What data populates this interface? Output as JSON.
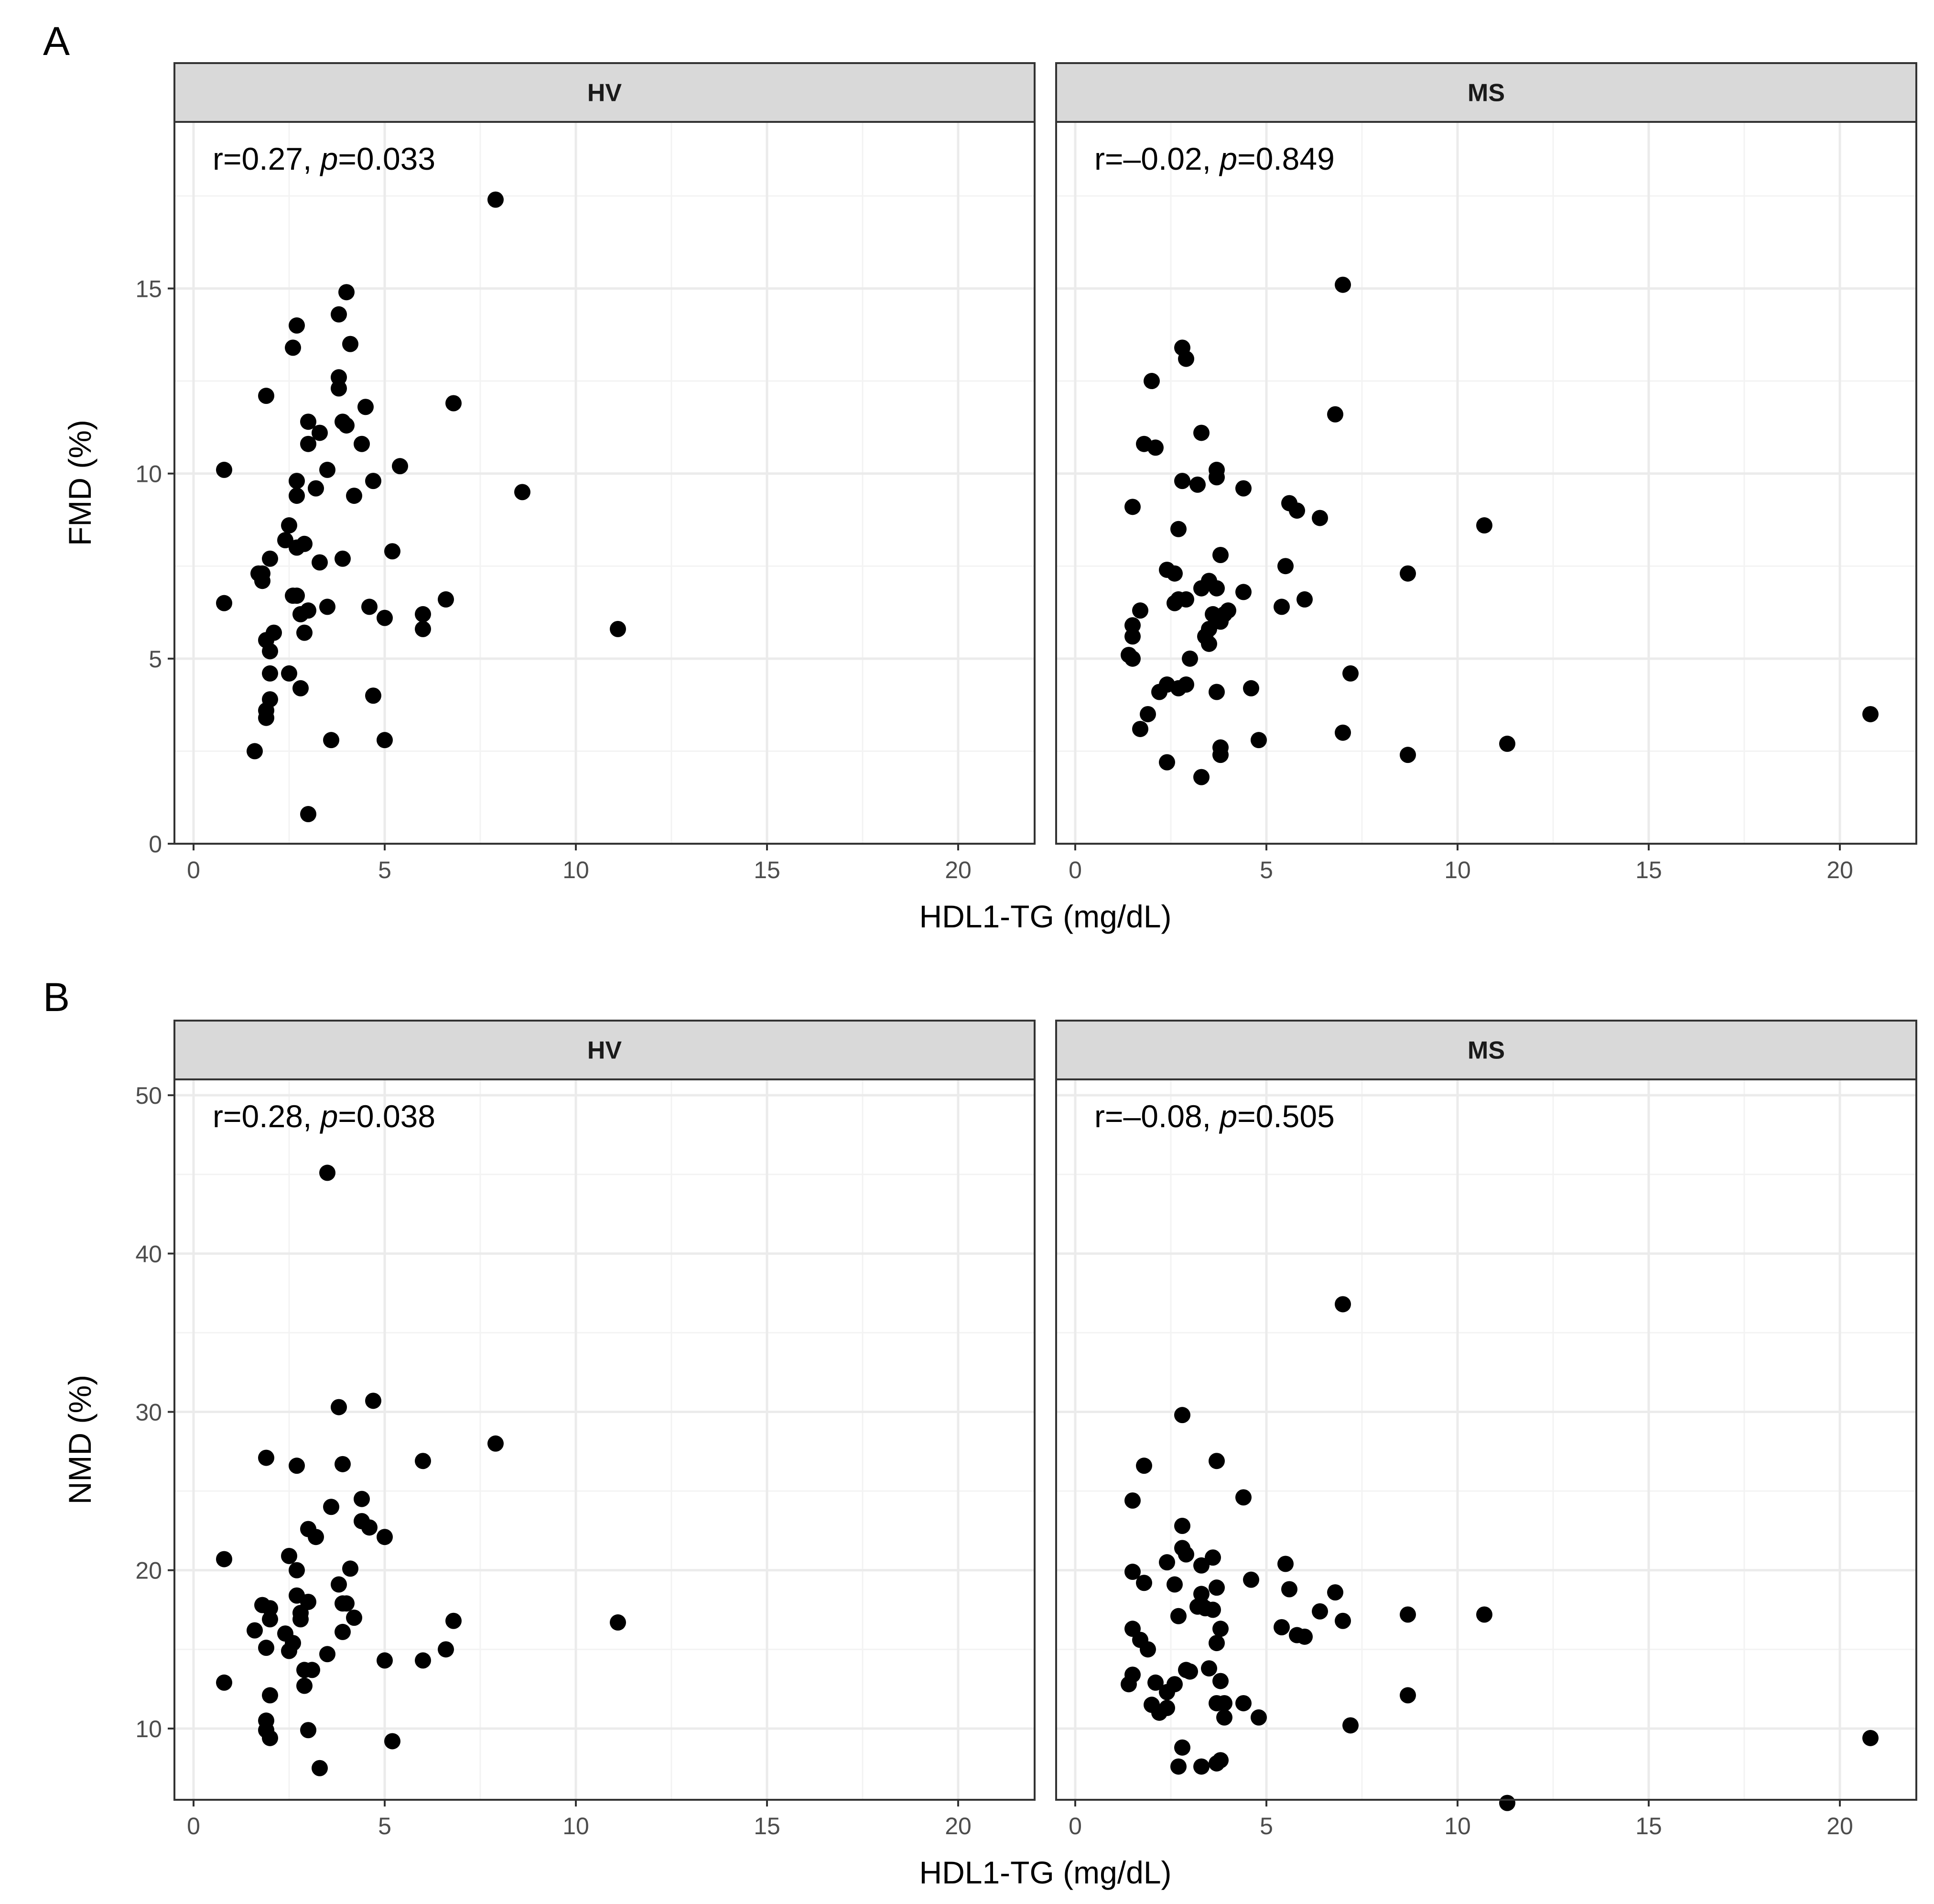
{
  "chart_data": [
    {
      "type": "scatter",
      "panel_label": "A",
      "ylabel": "FMD (%)",
      "xlabel": "HDL1-TG (mg/dL)",
      "xlim": [
        -0.5,
        22
      ],
      "ylim": [
        0,
        19.5
      ],
      "xticks": [
        0,
        5,
        10,
        15,
        20
      ],
      "yticks": [
        0,
        5,
        10,
        15
      ],
      "facets": [
        {
          "strip": "HV",
          "annotation": {
            "r_part": "r=0.27, ",
            "p_symbol": "p",
            "p_part": "=0.033"
          },
          "points": [
            [
              0.8,
              6.5
            ],
            [
              0.8,
              10.1
            ],
            [
              1.6,
              2.5
            ],
            [
              1.7,
              7.3
            ],
            [
              1.8,
              7.1
            ],
            [
              1.8,
              7.3
            ],
            [
              1.9,
              3.4
            ],
            [
              1.9,
              3.6
            ],
            [
              1.9,
              12.1
            ],
            [
              1.9,
              5.5
            ],
            [
              2.0,
              5.2
            ],
            [
              2.0,
              4.6
            ],
            [
              2.0,
              3.9
            ],
            [
              2.1,
              5.7
            ],
            [
              2.0,
              7.7
            ],
            [
              2.4,
              8.2
            ],
            [
              2.5,
              4.6
            ],
            [
              2.5,
              8.6
            ],
            [
              2.6,
              13.4
            ],
            [
              2.7,
              14.0
            ],
            [
              2.7,
              9.8
            ],
            [
              2.7,
              9.4
            ],
            [
              2.6,
              6.7
            ],
            [
              2.7,
              6.7
            ],
            [
              2.7,
              8.0
            ],
            [
              2.8,
              6.2
            ],
            [
              2.8,
              4.2
            ],
            [
              2.9,
              5.7
            ],
            [
              2.9,
              8.1
            ],
            [
              3.0,
              11.4
            ],
            [
              3.0,
              10.8
            ],
            [
              3.0,
              6.3
            ],
            [
              3.0,
              0.8
            ],
            [
              3.2,
              9.6
            ],
            [
              3.3,
              11.1
            ],
            [
              3.3,
              7.6
            ],
            [
              3.5,
              10.1
            ],
            [
              3.5,
              6.4
            ],
            [
              3.6,
              2.8
            ],
            [
              3.8,
              12.6
            ],
            [
              3.8,
              12.3
            ],
            [
              3.8,
              14.3
            ],
            [
              3.9,
              7.7
            ],
            [
              3.9,
              11.4
            ],
            [
              4.0,
              11.3
            ],
            [
              4.0,
              14.9
            ],
            [
              4.1,
              13.5
            ],
            [
              4.2,
              9.4
            ],
            [
              4.4,
              10.8
            ],
            [
              4.5,
              11.8
            ],
            [
              4.6,
              6.4
            ],
            [
              4.7,
              9.8
            ],
            [
              4.7,
              4.0
            ],
            [
              5.0,
              6.1
            ],
            [
              5.0,
              2.8
            ],
            [
              5.2,
              7.9
            ],
            [
              5.4,
              10.2
            ],
            [
              6.0,
              6.2
            ],
            [
              6.0,
              5.8
            ],
            [
              6.6,
              6.6
            ],
            [
              6.8,
              11.9
            ],
            [
              7.9,
              17.4
            ],
            [
              8.6,
              9.5
            ],
            [
              11.1,
              5.8
            ]
          ]
        },
        {
          "strip": "MS",
          "annotation": {
            "r_part": "r=–0.02, ",
            "p_symbol": "p",
            "p_part": "=0.849"
          },
          "points": [
            [
              1.4,
              5.1
            ],
            [
              1.5,
              5.6
            ],
            [
              1.5,
              5.9
            ],
            [
              1.5,
              5.0
            ],
            [
              1.5,
              9.1
            ],
            [
              1.7,
              3.1
            ],
            [
              1.7,
              6.3
            ],
            [
              1.8,
              10.8
            ],
            [
              1.9,
              3.5
            ],
            [
              2.0,
              12.5
            ],
            [
              2.1,
              10.7
            ],
            [
              2.2,
              4.1
            ],
            [
              2.4,
              4.3
            ],
            [
              2.4,
              2.2
            ],
            [
              2.4,
              7.4
            ],
            [
              2.6,
              6.5
            ],
            [
              2.6,
              7.3
            ],
            [
              2.7,
              6.6
            ],
            [
              2.7,
              4.2
            ],
            [
              2.7,
              8.5
            ],
            [
              2.8,
              9.8
            ],
            [
              2.8,
              13.4
            ],
            [
              2.9,
              13.1
            ],
            [
              2.9,
              6.6
            ],
            [
              2.9,
              4.3
            ],
            [
              3.0,
              5.0
            ],
            [
              3.2,
              9.7
            ],
            [
              3.3,
              11.1
            ],
            [
              3.3,
              6.9
            ],
            [
              3.3,
              1.8
            ],
            [
              3.4,
              5.6
            ],
            [
              3.5,
              5.8
            ],
            [
              3.5,
              5.4
            ],
            [
              3.5,
              7.1
            ],
            [
              3.6,
              6.2
            ],
            [
              3.7,
              10.1
            ],
            [
              3.7,
              9.9
            ],
            [
              3.7,
              6.9
            ],
            [
              3.7,
              4.1
            ],
            [
              3.8,
              7.8
            ],
            [
              3.8,
              2.6
            ],
            [
              3.8,
              2.4
            ],
            [
              3.8,
              6.0
            ],
            [
              3.9,
              6.2
            ],
            [
              4.0,
              6.3
            ],
            [
              4.4,
              6.8
            ],
            [
              4.4,
              9.6
            ],
            [
              4.6,
              4.2
            ],
            [
              4.8,
              2.8
            ],
            [
              5.4,
              6.4
            ],
            [
              5.5,
              7.5
            ],
            [
              5.6,
              9.2
            ],
            [
              5.8,
              9.0
            ],
            [
              6.0,
              6.6
            ],
            [
              6.4,
              8.8
            ],
            [
              6.8,
              11.6
            ],
            [
              7.0,
              15.1
            ],
            [
              7.0,
              3.0
            ],
            [
              7.2,
              4.6
            ],
            [
              8.7,
              7.3
            ],
            [
              8.7,
              2.4
            ],
            [
              10.7,
              8.6
            ],
            [
              11.3,
              2.7
            ],
            [
              20.8,
              3.5
            ]
          ]
        }
      ]
    },
    {
      "type": "scatter",
      "panel_label": "B",
      "ylabel": "NMD (%)",
      "xlabel": "HDL1-TG (mg/dL)",
      "xlim": [
        -0.5,
        22
      ],
      "ylim": [
        5.5,
        51
      ],
      "xticks": [
        0,
        5,
        10,
        15,
        20
      ],
      "yticks": [
        10,
        20,
        30,
        40,
        50
      ],
      "facets": [
        {
          "strip": "HV",
          "annotation": {
            "r_part": "r=0.28, ",
            "p_symbol": "p",
            "p_part": "=0.038"
          },
          "points": [
            [
              0.8,
              20.7
            ],
            [
              0.8,
              12.9
            ],
            [
              1.6,
              16.2
            ],
            [
              1.8,
              17.8
            ],
            [
              1.9,
              27.1
            ],
            [
              1.9,
              10.5
            ],
            [
              1.9,
              9.9
            ],
            [
              1.9,
              15.1
            ],
            [
              2.0,
              17.6
            ],
            [
              2.0,
              16.9
            ],
            [
              2.0,
              12.1
            ],
            [
              2.0,
              9.4
            ],
            [
              2.4,
              16.0
            ],
            [
              2.5,
              20.9
            ],
            [
              2.5,
              14.9
            ],
            [
              2.6,
              15.4
            ],
            [
              2.7,
              26.6
            ],
            [
              2.7,
              20.0
            ],
            [
              2.7,
              18.4
            ],
            [
              2.8,
              16.9
            ],
            [
              2.8,
              17.3
            ],
            [
              2.9,
              13.7
            ],
            [
              2.9,
              12.7
            ],
            [
              3.0,
              22.6
            ],
            [
              3.0,
              18.0
            ],
            [
              3.0,
              9.9
            ],
            [
              3.1,
              13.7
            ],
            [
              3.2,
              22.1
            ],
            [
              3.3,
              7.5
            ],
            [
              3.5,
              45.1
            ],
            [
              3.5,
              14.7
            ],
            [
              3.6,
              24.0
            ],
            [
              3.8,
              30.3
            ],
            [
              3.8,
              19.1
            ],
            [
              3.9,
              26.7
            ],
            [
              3.9,
              17.9
            ],
            [
              3.9,
              16.1
            ],
            [
              4.0,
              17.9
            ],
            [
              4.1,
              20.1
            ],
            [
              4.2,
              17.0
            ],
            [
              4.4,
              23.1
            ],
            [
              4.4,
              24.5
            ],
            [
              4.6,
              22.7
            ],
            [
              4.7,
              30.7
            ],
            [
              5.0,
              22.1
            ],
            [
              5.0,
              14.3
            ],
            [
              5.2,
              9.2
            ],
            [
              6.0,
              26.9
            ],
            [
              6.0,
              14.3
            ],
            [
              6.6,
              15.0
            ],
            [
              6.8,
              16.8
            ],
            [
              7.9,
              28.0
            ],
            [
              11.1,
              16.7
            ]
          ]
        },
        {
          "strip": "MS",
          "annotation": {
            "r_part": "r=–0.08, ",
            "p_symbol": "p",
            "p_part": "=0.505"
          },
          "points": [
            [
              1.4,
              12.8
            ],
            [
              1.5,
              13.4
            ],
            [
              1.5,
              16.3
            ],
            [
              1.5,
              19.9
            ],
            [
              1.5,
              24.4
            ],
            [
              1.7,
              15.6
            ],
            [
              1.8,
              26.6
            ],
            [
              1.8,
              19.2
            ],
            [
              1.9,
              15.0
            ],
            [
              2.0,
              11.5
            ],
            [
              2.1,
              12.9
            ],
            [
              2.2,
              11.0
            ],
            [
              2.4,
              11.3
            ],
            [
              2.4,
              12.3
            ],
            [
              2.4,
              20.5
            ],
            [
              2.6,
              19.1
            ],
            [
              2.6,
              12.8
            ],
            [
              2.7,
              7.6
            ],
            [
              2.7,
              17.1
            ],
            [
              2.8,
              29.8
            ],
            [
              2.8,
              22.8
            ],
            [
              2.8,
              21.4
            ],
            [
              2.8,
              8.8
            ],
            [
              2.9,
              21.0
            ],
            [
              2.9,
              13.7
            ],
            [
              3.0,
              13.6
            ],
            [
              3.2,
              17.7
            ],
            [
              3.3,
              20.3
            ],
            [
              3.3,
              18.5
            ],
            [
              3.3,
              17.8
            ],
            [
              3.3,
              7.6
            ],
            [
              3.4,
              17.6
            ],
            [
              3.5,
              13.8
            ],
            [
              3.6,
              20.8
            ],
            [
              3.6,
              17.5
            ],
            [
              3.7,
              26.9
            ],
            [
              3.7,
              18.9
            ],
            [
              3.7,
              15.4
            ],
            [
              3.7,
              11.6
            ],
            [
              3.7,
              7.8
            ],
            [
              3.8,
              13.0
            ],
            [
              3.8,
              8.0
            ],
            [
              3.8,
              16.3
            ],
            [
              3.9,
              11.6
            ],
            [
              3.9,
              10.7
            ],
            [
              4.4,
              24.6
            ],
            [
              4.4,
              11.6
            ],
            [
              4.6,
              19.4
            ],
            [
              4.8,
              10.7
            ],
            [
              5.4,
              16.4
            ],
            [
              5.5,
              20.4
            ],
            [
              5.6,
              18.8
            ],
            [
              5.8,
              15.9
            ],
            [
              6.0,
              15.8
            ],
            [
              6.4,
              17.4
            ],
            [
              6.8,
              18.6
            ],
            [
              7.0,
              36.8
            ],
            [
              7.0,
              16.8
            ],
            [
              7.2,
              10.2
            ],
            [
              8.7,
              17.2
            ],
            [
              8.7,
              12.1
            ],
            [
              10.7,
              17.2
            ],
            [
              11.3,
              5.3
            ],
            [
              20.8,
              9.4
            ]
          ]
        }
      ]
    }
  ]
}
